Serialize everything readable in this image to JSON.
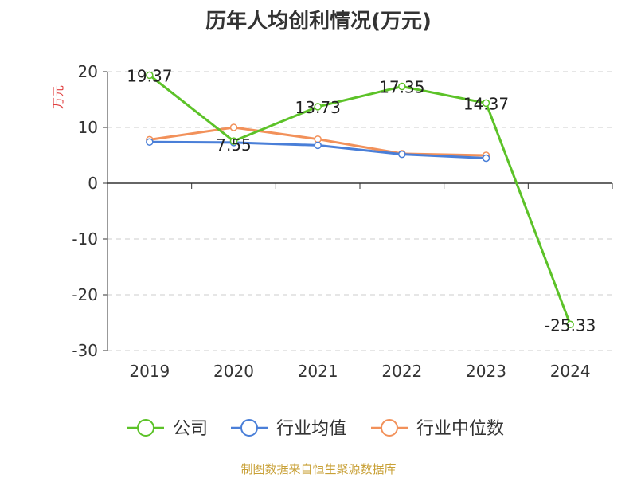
{
  "chart_data": {
    "type": "line",
    "title": "历年人均创利情况(万元)",
    "ylabel": "万元",
    "xlabel": "",
    "categories": [
      "2019",
      "2020",
      "2021",
      "2022",
      "2023",
      "2024"
    ],
    "ylim": [
      -30,
      20
    ],
    "yticks": [
      20,
      10,
      0,
      -10,
      -20,
      -30
    ],
    "grid": true,
    "legend_position": "bottom",
    "series": [
      {
        "name": "公司",
        "color": "#5cc228",
        "values": [
          19.37,
          7.55,
          13.73,
          17.35,
          14.37,
          -25.33
        ],
        "labels": [
          "19.37",
          "7.55",
          "13.73",
          "17.35",
          "14.37",
          "-25.33"
        ]
      },
      {
        "name": "行业均值",
        "color": "#4a7fd8",
        "values": [
          7.4,
          7.3,
          6.8,
          5.2,
          4.5,
          null
        ]
      },
      {
        "name": "行业中位数",
        "color": "#f2915a",
        "values": [
          7.8,
          10.0,
          7.9,
          5.3,
          5.0,
          null
        ]
      }
    ]
  },
  "source": "制图数据来自恒生聚源数据库"
}
